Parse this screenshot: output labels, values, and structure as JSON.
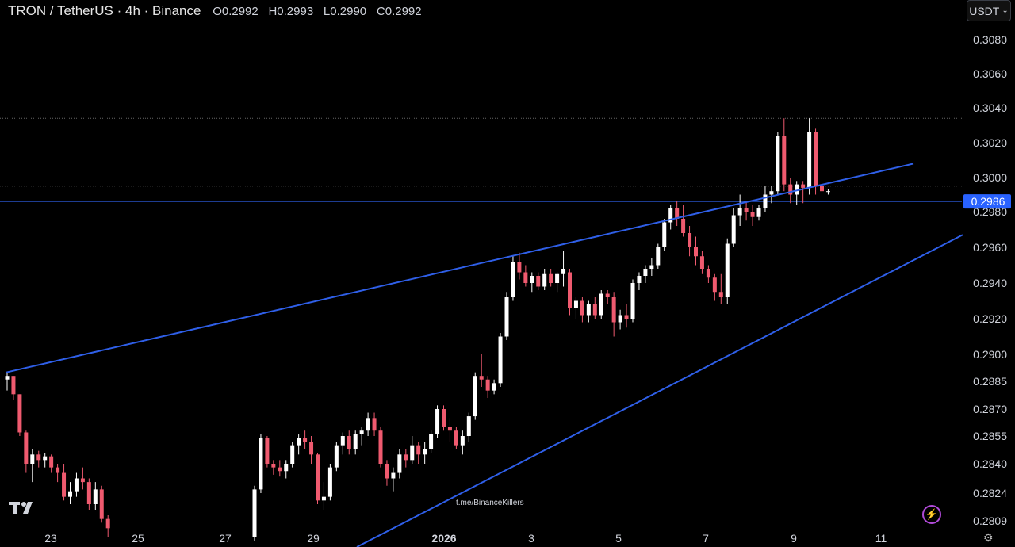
{
  "header": {
    "symbol": "TRON / TetherUS · 4h · Binance",
    "open": "O0.2992",
    "high": "H0.2993",
    "low": "L0.2990",
    "close": "C0.2992"
  },
  "currency_button": {
    "label": "USDT",
    "icon": "chevron-down-icon"
  },
  "price_axis": {
    "labels": [
      "0.3080",
      "0.3060",
      "0.3040",
      "0.3020",
      "0.3000",
      "0.2980",
      "0.2960",
      "0.2940",
      "0.2920",
      "0.2900",
      "0.2885",
      "0.2870",
      "0.2855",
      "0.2840",
      "0.2824",
      "0.2809"
    ]
  },
  "current_price": {
    "label": "0.2986",
    "color": "#2962ff"
  },
  "time_axis": {
    "labels": [
      "23",
      "25",
      "27",
      "29",
      "2026",
      "3",
      "5",
      "7",
      "9",
      "11"
    ]
  },
  "watermark": "t.me/BinanceKillers",
  "colors": {
    "up": "#ffffff",
    "down": "#ef5a6f",
    "trendline": "#2f5fe8",
    "background": "#000000"
  },
  "chart_data": {
    "type": "candlestick",
    "pair": "TRON / TetherUS",
    "interval": "4h",
    "exchange": "Binance",
    "candles": [
      [
        0.2886,
        0.289,
        0.288,
        0.2888
      ],
      [
        0.2888,
        0.2888,
        0.2875,
        0.2878
      ],
      [
        0.2878,
        0.2878,
        0.2855,
        0.2857
      ],
      [
        0.2857,
        0.2858,
        0.2835,
        0.284
      ],
      [
        0.284,
        0.2848,
        0.283,
        0.2845
      ],
      [
        0.2845,
        0.2847,
        0.2838,
        0.2842
      ],
      [
        0.2842,
        0.2846,
        0.2838,
        0.2844
      ],
      [
        0.2844,
        0.2845,
        0.2835,
        0.2838
      ],
      [
        0.2838,
        0.284,
        0.283,
        0.2835
      ],
      [
        0.2835,
        0.284,
        0.282,
        0.2822
      ],
      [
        0.2822,
        0.283,
        0.2818,
        0.2825
      ],
      [
        0.2825,
        0.2835,
        0.2822,
        0.2832
      ],
      [
        0.2832,
        0.2838,
        0.2826,
        0.283
      ],
      [
        0.283,
        0.2832,
        0.2815,
        0.2818
      ],
      [
        0.2818,
        0.283,
        0.2815,
        0.2826
      ],
      [
        0.2826,
        0.2828,
        0.2808,
        0.281
      ],
      [
        0.281,
        0.2812,
        0.28,
        0.2805
      ],
      [
        0.28,
        0.2828,
        0.2798,
        0.2826
      ],
      [
        0.2826,
        0.2856,
        0.2824,
        0.2854
      ],
      [
        0.2854,
        0.2855,
        0.2838,
        0.284
      ],
      [
        0.284,
        0.2842,
        0.2834,
        0.2838
      ],
      [
        0.2838,
        0.2842,
        0.2833,
        0.2836
      ],
      [
        0.2836,
        0.2842,
        0.2832,
        0.284
      ],
      [
        0.284,
        0.2852,
        0.2838,
        0.285
      ],
      [
        0.285,
        0.2856,
        0.2845,
        0.2854
      ],
      [
        0.2854,
        0.2858,
        0.2848,
        0.2852
      ],
      [
        0.2852,
        0.2855,
        0.284,
        0.2845
      ],
      [
        0.2845,
        0.2846,
        0.2818,
        0.282
      ],
      [
        0.282,
        0.283,
        0.2815,
        0.2822
      ],
      [
        0.2822,
        0.284,
        0.282,
        0.2838
      ],
      [
        0.2838,
        0.2852,
        0.2836,
        0.285
      ],
      [
        0.285,
        0.2857,
        0.2845,
        0.2855
      ],
      [
        0.2855,
        0.2858,
        0.2845,
        0.2848
      ],
      [
        0.2848,
        0.2858,
        0.2845,
        0.2856
      ],
      [
        0.2856,
        0.286,
        0.285,
        0.2858
      ],
      [
        0.2858,
        0.2868,
        0.2855,
        0.2865
      ],
      [
        0.2865,
        0.2868,
        0.2855,
        0.2858
      ],
      [
        0.2858,
        0.286,
        0.2838,
        0.284
      ],
      [
        0.284,
        0.2842,
        0.2828,
        0.2832
      ],
      [
        0.2832,
        0.2838,
        0.2825,
        0.2835
      ],
      [
        0.2835,
        0.2848,
        0.2832,
        0.2845
      ],
      [
        0.2845,
        0.2848,
        0.2838,
        0.2842
      ],
      [
        0.2842,
        0.2855,
        0.284,
        0.285
      ],
      [
        0.285,
        0.2852,
        0.284,
        0.2845
      ],
      [
        0.2845,
        0.2852,
        0.284,
        0.2848
      ],
      [
        0.2848,
        0.2858,
        0.2846,
        0.2856
      ],
      [
        0.2856,
        0.2872,
        0.2854,
        0.287
      ],
      [
        0.287,
        0.2872,
        0.2858,
        0.286
      ],
      [
        0.286,
        0.2865,
        0.2852,
        0.2858
      ],
      [
        0.2858,
        0.286,
        0.2848,
        0.285
      ],
      [
        0.285,
        0.2858,
        0.2845,
        0.2855
      ],
      [
        0.2855,
        0.2868,
        0.2852,
        0.2866
      ],
      [
        0.2866,
        0.289,
        0.2864,
        0.2888
      ],
      [
        0.2888,
        0.29,
        0.2882,
        0.2886
      ],
      [
        0.2886,
        0.2888,
        0.2876,
        0.288
      ],
      [
        0.288,
        0.2886,
        0.2878,
        0.2884
      ],
      [
        0.2884,
        0.2912,
        0.2882,
        0.291
      ],
      [
        0.291,
        0.2935,
        0.2908,
        0.2932
      ],
      [
        0.2932,
        0.2955,
        0.293,
        0.2952
      ],
      [
        0.2952,
        0.2957,
        0.2942,
        0.2946
      ],
      [
        0.2946,
        0.295,
        0.2938,
        0.294
      ],
      [
        0.294,
        0.2946,
        0.2935,
        0.2944
      ],
      [
        0.2944,
        0.2946,
        0.2936,
        0.2938
      ],
      [
        0.2938,
        0.2948,
        0.2936,
        0.2945
      ],
      [
        0.2945,
        0.2948,
        0.2938,
        0.294
      ],
      [
        0.294,
        0.2946,
        0.2935,
        0.2945
      ],
      [
        0.2945,
        0.2958,
        0.2938,
        0.2948
      ],
      [
        0.2946,
        0.2948,
        0.2922,
        0.2926
      ],
      [
        0.2926,
        0.2932,
        0.292,
        0.293
      ],
      [
        0.293,
        0.2932,
        0.2918,
        0.2922
      ],
      [
        0.2922,
        0.293,
        0.2918,
        0.2928
      ],
      [
        0.2928,
        0.2932,
        0.292,
        0.2922
      ],
      [
        0.2922,
        0.2936,
        0.292,
        0.2934
      ],
      [
        0.2934,
        0.2936,
        0.2928,
        0.2932
      ],
      [
        0.2932,
        0.2935,
        0.291,
        0.2918
      ],
      [
        0.2918,
        0.2925,
        0.2914,
        0.2922
      ],
      [
        0.2922,
        0.2928,
        0.2915,
        0.292
      ],
      [
        0.292,
        0.2942,
        0.2918,
        0.294
      ],
      [
        0.294,
        0.2946,
        0.2936,
        0.2944
      ],
      [
        0.2944,
        0.295,
        0.294,
        0.2948
      ],
      [
        0.2948,
        0.2954,
        0.2944,
        0.295
      ],
      [
        0.295,
        0.2962,
        0.2948,
        0.296
      ],
      [
        0.296,
        0.2976,
        0.2958,
        0.2974
      ],
      [
        0.2974,
        0.2984,
        0.297,
        0.2982
      ],
      [
        0.2982,
        0.2986,
        0.2972,
        0.2976
      ],
      [
        0.2976,
        0.2984,
        0.2966,
        0.2968
      ],
      [
        0.2968,
        0.2972,
        0.2955,
        0.296
      ],
      [
        0.296,
        0.2966,
        0.295,
        0.2955
      ],
      [
        0.2955,
        0.2958,
        0.2945,
        0.2948
      ],
      [
        0.2948,
        0.295,
        0.294,
        0.2943
      ],
      [
        0.2943,
        0.2945,
        0.293,
        0.2935
      ],
      [
        0.2935,
        0.2945,
        0.2928,
        0.2932
      ],
      [
        0.2932,
        0.2965,
        0.2928,
        0.2962
      ],
      [
        0.2962,
        0.2982,
        0.296,
        0.2978
      ],
      [
        0.2978,
        0.299,
        0.2972,
        0.2982
      ],
      [
        0.2982,
        0.2986,
        0.2975,
        0.298
      ],
      [
        0.298,
        0.2984,
        0.2972,
        0.2977
      ],
      [
        0.2977,
        0.2984,
        0.2975,
        0.2982
      ],
      [
        0.2982,
        0.2995,
        0.298,
        0.299
      ],
      [
        0.299,
        0.2995,
        0.2985,
        0.2992
      ],
      [
        0.2992,
        0.3026,
        0.299,
        0.3024
      ],
      [
        0.3024,
        0.3034,
        0.2992,
        0.2996
      ],
      [
        0.2996,
        0.3,
        0.2985,
        0.299
      ],
      [
        0.299,
        0.2998,
        0.2984,
        0.2996
      ],
      [
        0.2996,
        0.2998,
        0.2985,
        0.2994
      ],
      [
        0.2994,
        0.3034,
        0.299,
        0.3026
      ],
      [
        0.3026,
        0.3028,
        0.299,
        0.2995
      ],
      [
        0.2995,
        0.2998,
        0.2988,
        0.2992
      ],
      [
        0.2992,
        0.2993,
        0.299,
        0.2992
      ]
    ],
    "horizontal_lines": [
      0.2986,
      0.2995,
      0.3034
    ],
    "trendlines": [
      {
        "from": [
          "Dec 22",
          0.289
        ],
        "to": [
          "Jan 11",
          0.3008
        ]
      },
      {
        "from": [
          "Dec 30",
          0.2805
        ],
        "to": [
          "Jan 12",
          0.2964
        ]
      }
    ],
    "y_range": [
      0.28,
      0.309
    ]
  }
}
